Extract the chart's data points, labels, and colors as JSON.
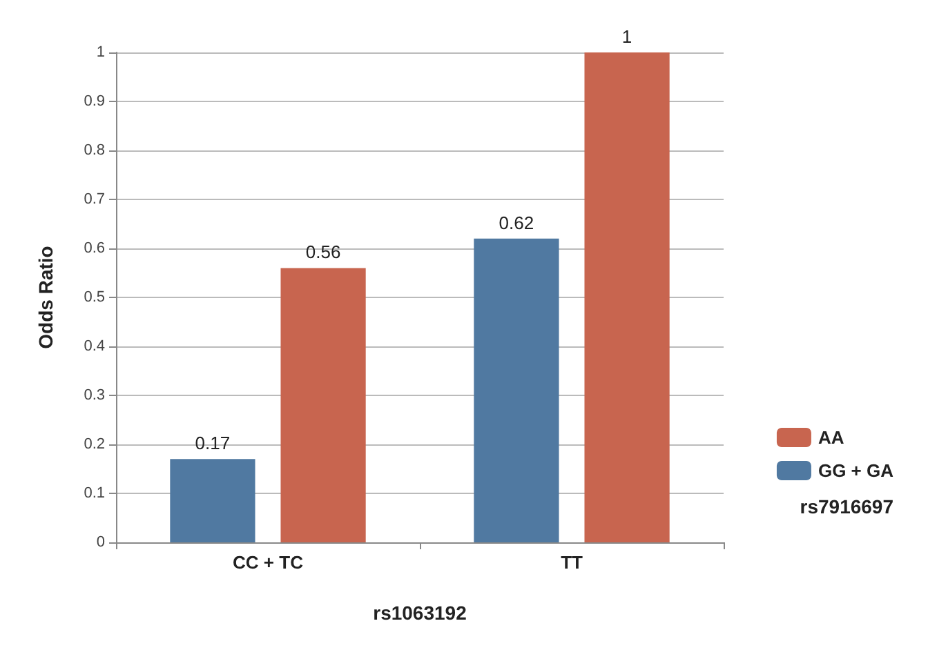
{
  "chart_data": {
    "type": "bar",
    "ylabel": "Odds Ratio",
    "xlabel": "rs1063192",
    "legend_title": "rs7916697",
    "categories": [
      "CC + TC",
      "TT"
    ],
    "series": [
      {
        "name": "GG + GA",
        "color": "#5079a1",
        "values": [
          0.17,
          0.62
        ]
      },
      {
        "name": "AA",
        "color": "#c8654f",
        "values": [
          0.56,
          1
        ]
      }
    ],
    "ylim": [
      0,
      1
    ],
    "yticks": [
      0,
      0.1,
      0.2,
      0.3,
      0.4,
      0.5,
      0.6,
      0.7,
      0.8,
      0.9,
      1
    ],
    "grid": "y",
    "legend": "bottom right",
    "data_labels": true
  }
}
